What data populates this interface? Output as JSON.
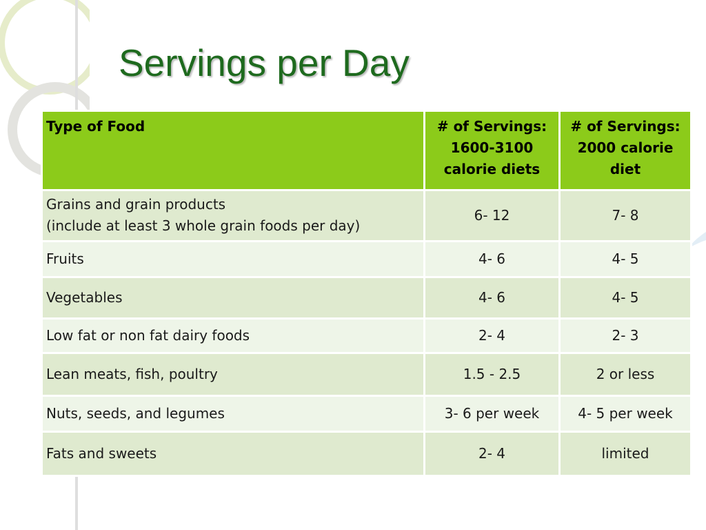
{
  "slide": {
    "title": "Servings per Day"
  },
  "table": {
    "headers": [
      "Type of Food",
      "# of Servings: 1600-3100 calorie diets",
      "# of Servings: 2000 calorie diet"
    ],
    "rows": [
      {
        "food": "Grains and grain products",
        "note": "(include at least 3 whole grain foods per day)",
        "range_1600_3100": "6- 12",
        "range_2000": "7- 8"
      },
      {
        "food": "Fruits",
        "range_1600_3100": "4- 6",
        "range_2000": "4- 5"
      },
      {
        "food": "Vegetables",
        "range_1600_3100": "4- 6",
        "range_2000": "4- 5"
      },
      {
        "food": "Low fat or non fat dairy foods",
        "range_1600_3100": "2- 4",
        "range_2000": "2- 3"
      },
      {
        "food": "Lean meats, fish, poultry",
        "range_1600_3100": "1.5 - 2.5",
        "range_2000": "2 or less"
      },
      {
        "food": "Nuts, seeds, and legumes",
        "range_1600_3100": "3- 6 per week",
        "range_2000": "4- 5 per week"
      },
      {
        "food": "Fats and sweets",
        "range_1600_3100": "2- 4",
        "range_2000": "limited"
      }
    ]
  },
  "colors": {
    "title": "#1e6a1e",
    "header_background": "#8ccb1a",
    "row_band_dark": "#dfeacf",
    "row_band_light": "#eef5e8"
  }
}
